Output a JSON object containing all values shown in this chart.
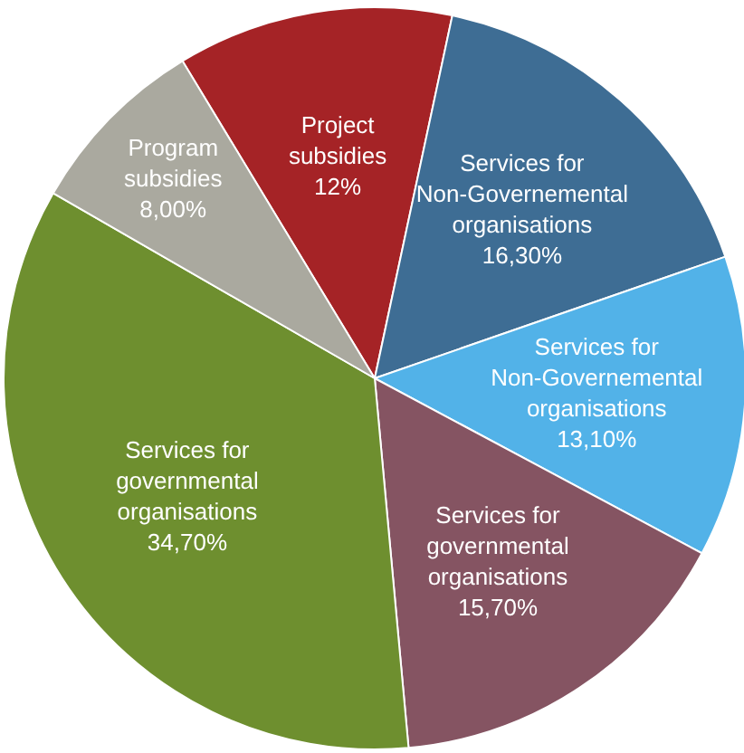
{
  "chart_data": {
    "type": "pie",
    "categories": [
      "Project subsidies",
      "Services for Non-Governemental organisations",
      "Services for Non-Governemental organisations",
      "Services for governmental organisations",
      "Services for governmental organisations",
      "Program subsidies"
    ],
    "values": [
      12,
      16.3,
      13.1,
      15.7,
      34.7,
      8
    ],
    "colors": [
      "#a52326",
      "#3e6d94",
      "#52b2e8",
      "#855462",
      "#6e8f2f",
      "#aaa99f"
    ],
    "value_labels": [
      "12%",
      "16,30%",
      "13,10%",
      "15,70%",
      "34,70%",
      "8,00%"
    ]
  }
}
